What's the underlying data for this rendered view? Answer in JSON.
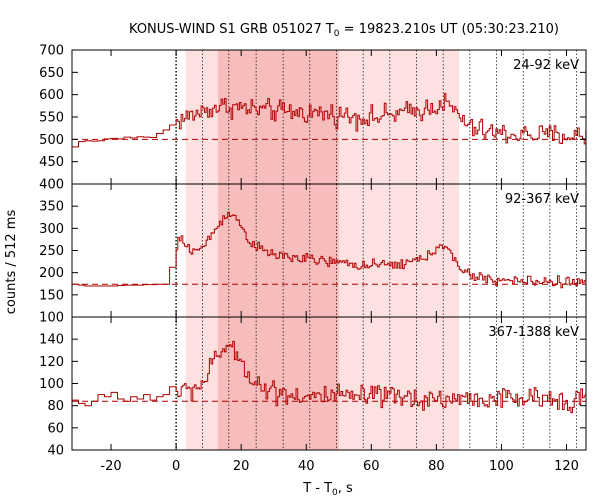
{
  "chart_data": {
    "type": "line",
    "title_main": "KONUS-WIND S1 GRB 051027 T",
    "title_sub": "0",
    "title_rest": " = 19823.210s UT (05:30:23.210)",
    "xlabel_main": "T - T",
    "xlabel_sub": "0",
    "xlabel_rest": ", s",
    "ylabel": "counts / 512 ms",
    "xlim": [
      -32,
      126
    ],
    "x_ticks": [
      -20,
      0,
      20,
      40,
      60,
      80,
      100,
      120
    ],
    "x_tick_labels": [
      "-20",
      "0",
      "20",
      "40",
      "60",
      "80",
      "100",
      "120"
    ],
    "trigger_time": 0,
    "shaded_full": [
      2.9,
      87.0
    ],
    "shaded_dark": [
      12.9,
      50.0
    ],
    "dotted_lines": [
      8.1,
      16.2,
      24.6,
      32.9,
      41.1,
      49.3,
      57.5,
      65.7,
      73.9,
      82.1,
      90.3,
      98.5,
      106.7,
      114.9,
      123.1
    ],
    "colors": {
      "data": "#b00000",
      "shade_light": "#fde0e0",
      "shade_dark": "#f7bcbc",
      "axes": "#000000"
    },
    "panels": [
      {
        "label": "24-92 keV",
        "ylim": [
          400,
          700
        ],
        "y_ticks": [
          400,
          450,
          500,
          550,
          600,
          650,
          700
        ],
        "y_tick_labels": [
          "400",
          "450",
          "500",
          "550",
          "600",
          "650",
          "700"
        ],
        "background": 500,
        "pre_x": [
          -32,
          -30,
          -28,
          -26,
          -24,
          -22,
          -20,
          -18,
          -16,
          -14,
          -12,
          -10,
          -8,
          -6,
          -4,
          -2
        ],
        "pre_y": [
          483,
          495,
          497,
          496,
          497,
          501,
          502,
          501,
          505,
          503,
          506,
          505,
          504,
          513,
          521,
          532
        ],
        "burst_start": 0,
        "burst_step": 0.512,
        "profile_t": [
          0,
          5,
          10,
          15,
          20,
          30,
          45,
          60,
          75,
          82,
          86,
          90,
          100,
          126
        ],
        "profile_v": [
          540,
          555,
          568,
          575,
          570,
          563,
          558,
          548,
          565,
          582,
          560,
          525,
          512,
          507
        ],
        "noise": 24
      },
      {
        "label": "92-367 keV",
        "ylim": [
          100,
          400
        ],
        "y_ticks": [
          100,
          150,
          200,
          250,
          300,
          350
        ],
        "y_tick_labels": [
          "100",
          "150",
          "200",
          "250",
          "300",
          "350"
        ],
        "background": 174,
        "pre_x": [
          -32,
          -30,
          -28,
          -26,
          -24,
          -22,
          -20,
          -18,
          -16,
          -14,
          -12,
          -10,
          -8,
          -6,
          -4,
          -2
        ],
        "pre_y": [
          174,
          172,
          170,
          170,
          170,
          170,
          170,
          171,
          172,
          172,
          172,
          173,
          173,
          174,
          174,
          212
        ],
        "burst_start": 0,
        "burst_step": 0.512,
        "profile_t": [
          0,
          0.8,
          2,
          5,
          8,
          11,
          14,
          16,
          19,
          22,
          26,
          30,
          40,
          50,
          60,
          70,
          78,
          81,
          84,
          87,
          92,
          100,
          126
        ],
        "profile_v": [
          250,
          282,
          265,
          250,
          255,
          290,
          318,
          340,
          315,
          275,
          250,
          240,
          230,
          222,
          215,
          220,
          238,
          270,
          245,
          205,
          190,
          182,
          178
        ],
        "noise": 12
      },
      {
        "label": "367-1388 keV",
        "ylim": [
          40,
          160
        ],
        "y_ticks": [
          40,
          60,
          80,
          100,
          120,
          140
        ],
        "y_tick_labels": [
          "40",
          "60",
          "80",
          "100",
          "120",
          "140"
        ],
        "background": 84,
        "pre_x": [
          -32,
          -30,
          -28,
          -26,
          -24,
          -22,
          -20,
          -18,
          -16,
          -14,
          -12,
          -10,
          -8,
          -6,
          -4,
          -2
        ],
        "pre_y": [
          85,
          82,
          80,
          84,
          90,
          88,
          92,
          86,
          84,
          88,
          86,
          90,
          85,
          88,
          90,
          97
        ],
        "burst_start": 0,
        "burst_step": 0.512,
        "profile_t": [
          0,
          4,
          8,
          12,
          15,
          17,
          20,
          23,
          27,
          32,
          40,
          60,
          80,
          126
        ],
        "profile_v": [
          92,
          94,
          100,
          122,
          135,
          128,
          120,
          105,
          95,
          92,
          88,
          88,
          86,
          86
        ],
        "noise": 10
      }
    ]
  }
}
